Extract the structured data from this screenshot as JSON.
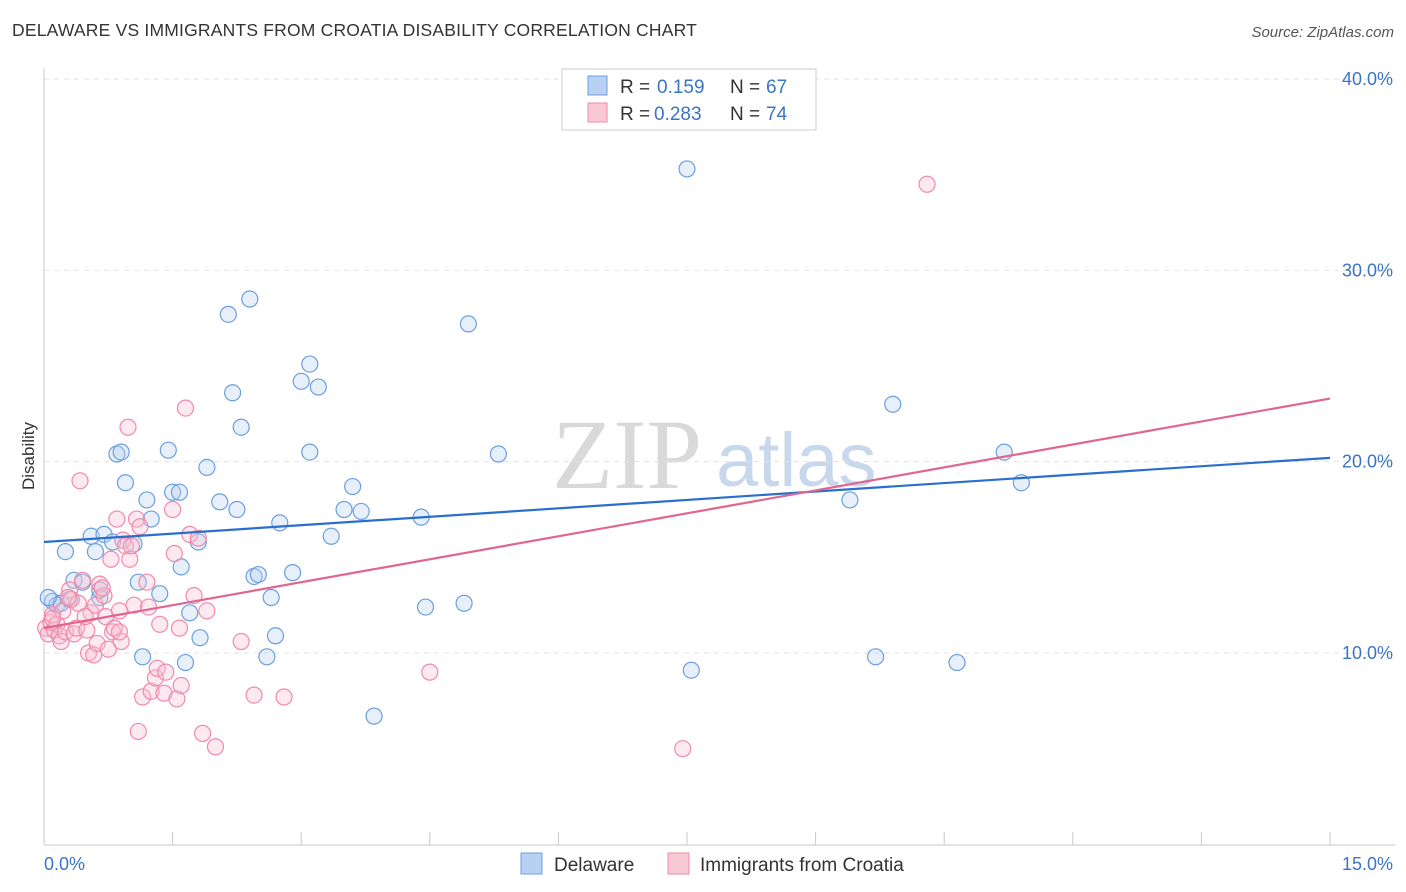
{
  "title": "DELAWARE VS IMMIGRANTS FROM CROATIA DISABILITY CORRELATION CHART",
  "source": "Source: ZipAtlas.com",
  "watermark": {
    "zip": "ZIP",
    "atlas": "atlas"
  },
  "legend_top": {
    "r_label": "R =",
    "n_label": "N =",
    "items": [
      {
        "r": "0.159",
        "n": "67"
      },
      {
        "r": "0.283",
        "n": "74"
      }
    ]
  },
  "chart_data": {
    "type": "scatter",
    "title": "DELAWARE VS IMMIGRANTS FROM CROATIA DISABILITY CORRELATION CHART",
    "xlabel": "",
    "ylabel": "Disability",
    "xlim": [
      0,
      15
    ],
    "ylim": [
      1.5,
      42
    ],
    "x_tick_labels": {
      "min": "0.0%",
      "max": "15.0%"
    },
    "y_ticks": [
      10,
      20,
      30,
      40
    ],
    "y_tick_labels": [
      "10.0%",
      "20.0%",
      "30.0%",
      "40.0%"
    ],
    "colors": {
      "delaware": "#6b9fe0",
      "croatia": "#f08aab",
      "delaware_line": "#2a6fcc",
      "croatia_line": "#e0668f"
    },
    "series": [
      {
        "name": "Delaware",
        "r": 0.159,
        "n": 67,
        "trend": [
          [
            0,
            15.8
          ],
          [
            15,
            20.2
          ]
        ],
        "points": [
          [
            0.1,
            12.7
          ],
          [
            0.15,
            12.5
          ],
          [
            0.2,
            12.6
          ],
          [
            0.25,
            15.3
          ],
          [
            0.3,
            12.8
          ],
          [
            0.35,
            13.8
          ],
          [
            0.45,
            13.7
          ],
          [
            0.55,
            16.1
          ],
          [
            0.6,
            15.3
          ],
          [
            0.65,
            12.9
          ],
          [
            0.65,
            13.3
          ],
          [
            0.7,
            16.2
          ],
          [
            0.8,
            15.8
          ],
          [
            0.85,
            20.4
          ],
          [
            0.9,
            20.5
          ],
          [
            0.95,
            18.9
          ],
          [
            1.05,
            15.7
          ],
          [
            1.1,
            13.7
          ],
          [
            1.15,
            9.8
          ],
          [
            1.2,
            18.0
          ],
          [
            1.25,
            17.0
          ],
          [
            1.35,
            13.1
          ],
          [
            1.45,
            20.6
          ],
          [
            1.5,
            18.4
          ],
          [
            1.58,
            18.4
          ],
          [
            1.6,
            14.5
          ],
          [
            1.65,
            9.5
          ],
          [
            1.7,
            12.1
          ],
          [
            1.8,
            15.8
          ],
          [
            1.82,
            10.8
          ],
          [
            1.9,
            19.7
          ],
          [
            2.05,
            17.9
          ],
          [
            2.15,
            27.7
          ],
          [
            2.2,
            23.6
          ],
          [
            2.25,
            17.5
          ],
          [
            2.3,
            21.8
          ],
          [
            2.4,
            28.5
          ],
          [
            2.45,
            14.0
          ],
          [
            2.5,
            14.1
          ],
          [
            2.6,
            9.8
          ],
          [
            2.65,
            12.9
          ],
          [
            2.7,
            10.9
          ],
          [
            2.75,
            16.8
          ],
          [
            2.9,
            14.2
          ],
          [
            3.0,
            24.2
          ],
          [
            3.1,
            25.1
          ],
          [
            3.1,
            20.5
          ],
          [
            3.2,
            23.9
          ],
          [
            3.35,
            16.1
          ],
          [
            3.5,
            17.5
          ],
          [
            3.6,
            18.7
          ],
          [
            3.7,
            17.4
          ],
          [
            3.85,
            6.7
          ],
          [
            4.4,
            17.1
          ],
          [
            4.45,
            12.4
          ],
          [
            4.9,
            12.6
          ],
          [
            4.95,
            27.2
          ],
          [
            5.3,
            20.4
          ],
          [
            7.5,
            35.3
          ],
          [
            7.55,
            9.1
          ],
          [
            9.4,
            18.0
          ],
          [
            9.7,
            9.8
          ],
          [
            9.9,
            23.0
          ],
          [
            10.65,
            9.5
          ],
          [
            11.2,
            20.5
          ],
          [
            11.4,
            18.9
          ],
          [
            0.05,
            12.9
          ]
        ]
      },
      {
        "name": "Immigrants from Croatia",
        "r": 0.283,
        "n": 74,
        "trend": [
          [
            0,
            11.3
          ],
          [
            15,
            23.3
          ]
        ],
        "points": [
          [
            0.02,
            11.3
          ],
          [
            0.05,
            11.0
          ],
          [
            0.08,
            11.6
          ],
          [
            0.1,
            12.0
          ],
          [
            0.12,
            11.2
          ],
          [
            0.15,
            11.5
          ],
          [
            0.18,
            10.9
          ],
          [
            0.2,
            10.6
          ],
          [
            0.22,
            12.2
          ],
          [
            0.25,
            11.1
          ],
          [
            0.3,
            13.3
          ],
          [
            0.32,
            12.8
          ],
          [
            0.35,
            11.0
          ],
          [
            0.38,
            11.3
          ],
          [
            0.4,
            12.6
          ],
          [
            0.42,
            19.0
          ],
          [
            0.45,
            13.8
          ],
          [
            0.5,
            11.2
          ],
          [
            0.52,
            10.0
          ],
          [
            0.55,
            12.1
          ],
          [
            0.58,
            9.9
          ],
          [
            0.6,
            12.5
          ],
          [
            0.62,
            10.5
          ],
          [
            0.65,
            13.6
          ],
          [
            0.7,
            13.0
          ],
          [
            0.72,
            11.9
          ],
          [
            0.75,
            10.2
          ],
          [
            0.78,
            14.9
          ],
          [
            0.8,
            11.1
          ],
          [
            0.82,
            11.3
          ],
          [
            0.85,
            17.0
          ],
          [
            0.88,
            12.2
          ],
          [
            0.9,
            10.6
          ],
          [
            0.92,
            15.9
          ],
          [
            0.95,
            15.6
          ],
          [
            0.98,
            21.8
          ],
          [
            1.0,
            14.9
          ],
          [
            1.02,
            15.6
          ],
          [
            1.05,
            12.5
          ],
          [
            1.08,
            17.0
          ],
          [
            1.1,
            5.9
          ],
          [
            1.12,
            16.6
          ],
          [
            1.15,
            7.7
          ],
          [
            1.2,
            13.7
          ],
          [
            1.22,
            12.4
          ],
          [
            1.25,
            8.0
          ],
          [
            1.3,
            8.7
          ],
          [
            1.32,
            9.2
          ],
          [
            1.35,
            11.5
          ],
          [
            1.4,
            7.9
          ],
          [
            1.42,
            9.0
          ],
          [
            1.5,
            17.5
          ],
          [
            1.52,
            15.2
          ],
          [
            1.55,
            7.6
          ],
          [
            1.58,
            11.3
          ],
          [
            1.6,
            8.3
          ],
          [
            1.65,
            22.8
          ],
          [
            1.7,
            16.2
          ],
          [
            1.75,
            13.0
          ],
          [
            1.8,
            16.0
          ],
          [
            1.85,
            5.8
          ],
          [
            1.9,
            12.2
          ],
          [
            2.0,
            5.1
          ],
          [
            2.3,
            10.6
          ],
          [
            2.45,
            7.8
          ],
          [
            2.8,
            7.7
          ],
          [
            4.5,
            9.0
          ],
          [
            7.45,
            5.0
          ],
          [
            10.3,
            34.5
          ],
          [
            0.1,
            11.8
          ],
          [
            0.28,
            12.9
          ],
          [
            0.48,
            11.9
          ],
          [
            0.68,
            13.4
          ],
          [
            0.88,
            11.1
          ]
        ]
      }
    ]
  },
  "bottom_legend": [
    {
      "label": "Delaware"
    },
    {
      "label": "Immigrants from Croatia"
    }
  ]
}
